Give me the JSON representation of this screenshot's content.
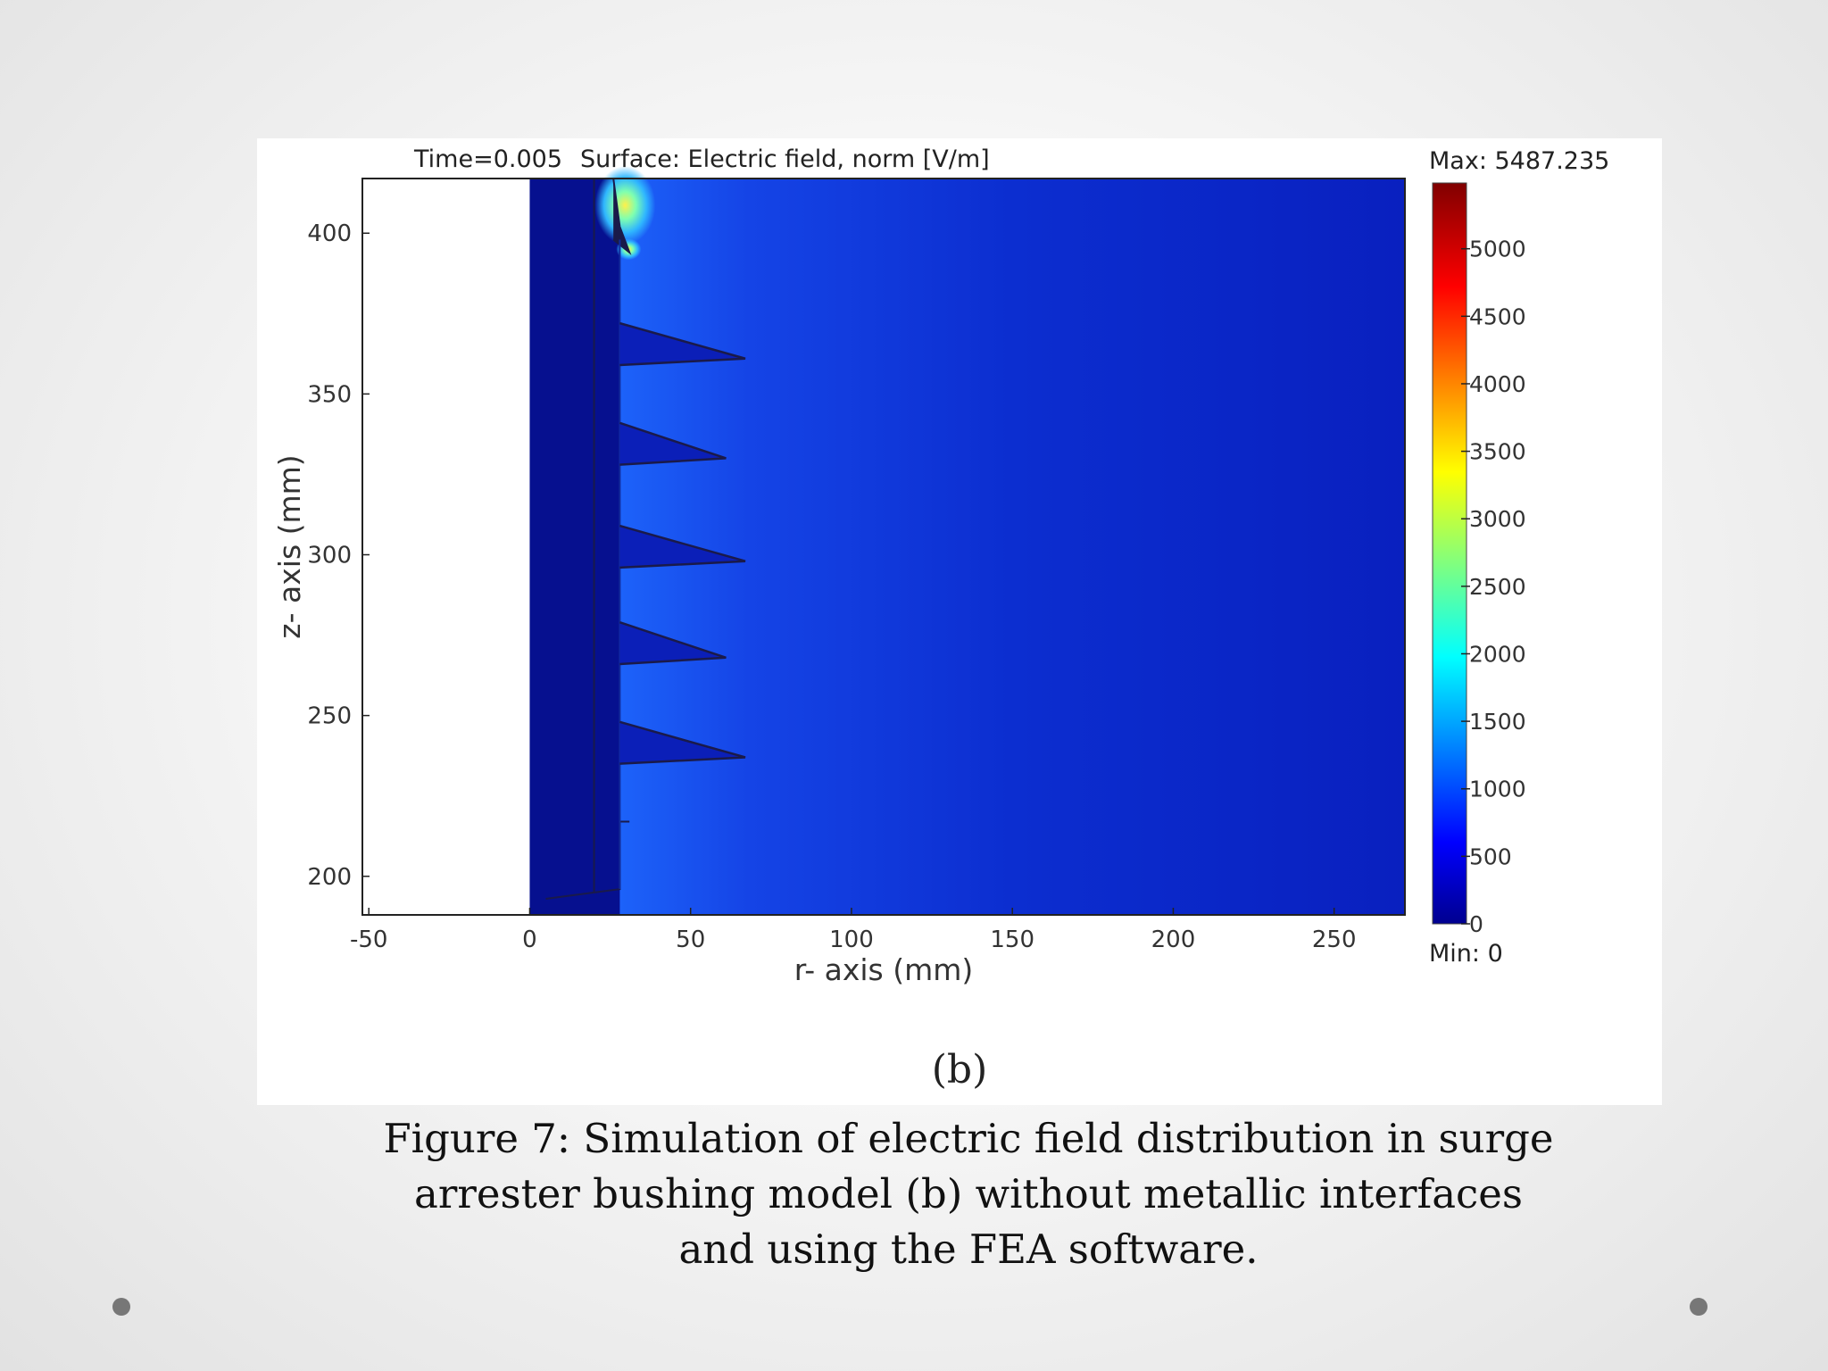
{
  "slide": {
    "sublabel": "(b)",
    "caption_lines": [
      "Figure 7: Simulation of electric field distribution in surge",
      "arrester bushing model (b) without metallic interfaces",
      "and using the FEA software."
    ]
  },
  "chart_data": {
    "type": "heatmap",
    "time_label": "Time=0.005",
    "surface_label": "Surface: Electric field, norm [V/m]",
    "xlabel": "r- axis (mm)",
    "ylabel": "z- axis (mm)",
    "xlim": [
      -52,
      272
    ],
    "ylim": [
      188,
      417
    ],
    "x_ticks": [
      -50,
      0,
      50,
      100,
      150,
      200,
      250
    ],
    "y_ticks": [
      200,
      250,
      300,
      350,
      400
    ],
    "colorbar": {
      "max_label": "Max: 5487.235",
      "min_label": "Min: 0",
      "max": 5487.235,
      "min": 0,
      "ticks": [
        0,
        500,
        1000,
        1500,
        2000,
        2500,
        3000,
        3500,
        4000,
        4500,
        5000
      ],
      "colormap": "jet"
    },
    "colors": {
      "background_field": "#0a1fc4",
      "near_surface_field": "#1a6cff",
      "hot_spot": "#ffe640",
      "inner_region": "#06108f",
      "outline": "#1a1a4a",
      "empty_region": "#ffffff"
    },
    "geometry": {
      "empty_region_r": [
        -52,
        0
      ],
      "core_r": [
        0,
        28
      ],
      "shed_tips": [
        {
          "z": 361,
          "r": 67
        },
        {
          "z": 330,
          "r": 61
        },
        {
          "z": 298,
          "r": 67
        },
        {
          "z": 268,
          "r": 61
        },
        {
          "z": 237,
          "r": 67
        }
      ]
    }
  }
}
